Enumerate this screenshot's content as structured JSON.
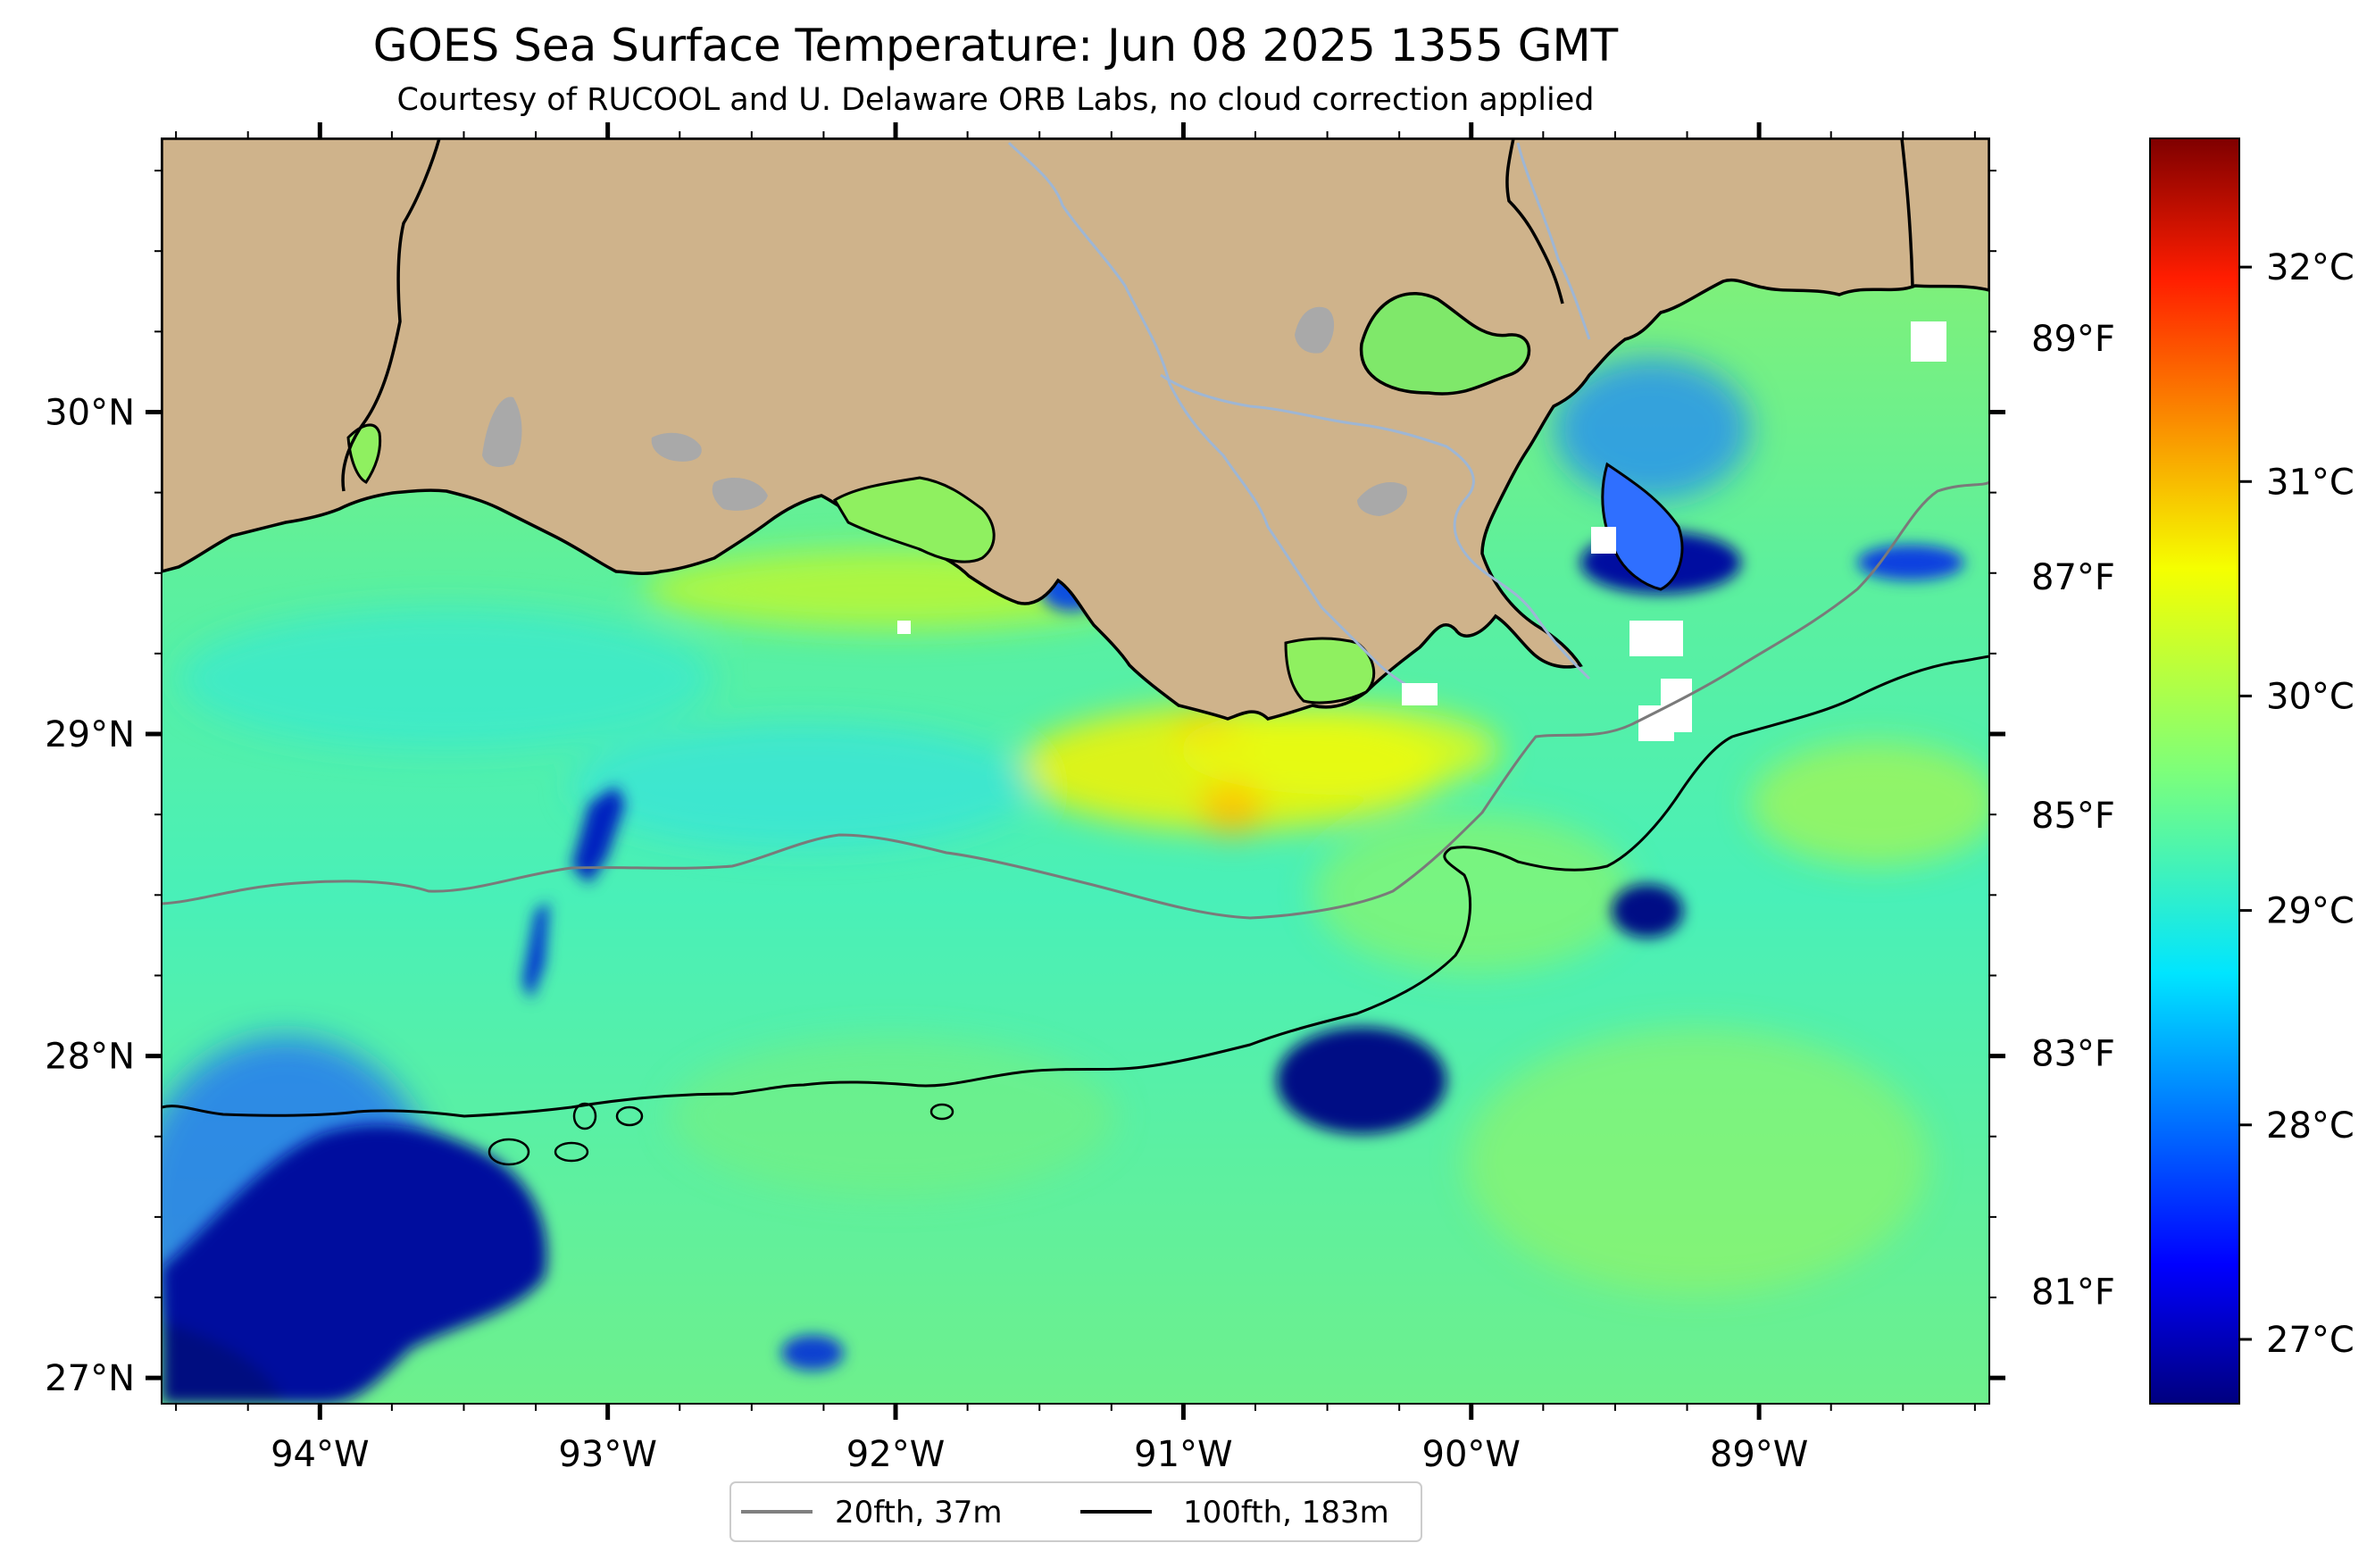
{
  "title": "GOES Sea Surface Temperature: Jun 08 2025 1355 GMT",
  "subtitle": "Courtesy of RUCOOL and U. Delaware ORB Labs, no cloud correction applied",
  "map": {
    "lon_range": [
      -94.55,
      -88.2
    ],
    "lat_range": [
      26.92,
      30.85
    ],
    "lon_ticks": [
      {
        "value": -94,
        "label": "94°W"
      },
      {
        "value": -93,
        "label": "93°W"
      },
      {
        "value": -92,
        "label": "92°W"
      },
      {
        "value": -91,
        "label": "91°W"
      },
      {
        "value": -90,
        "label": "90°W"
      },
      {
        "value": -89,
        "label": "89°W"
      }
    ],
    "lat_ticks": [
      {
        "value": 30,
        "label": "30°N"
      },
      {
        "value": 29,
        "label": "29°N"
      },
      {
        "value": 28,
        "label": "28°N"
      },
      {
        "value": 27,
        "label": "27°N"
      }
    ],
    "land_color": "#cfb38b",
    "lake_color": "#a9a9a9",
    "river_color": "#9eb6d4"
  },
  "colorbar": {
    "colormap": "jet",
    "range_c": [
      26.7,
      32.6
    ],
    "celsius_ticks": [
      {
        "value": 27,
        "label": "27°C"
      },
      {
        "value": 28,
        "label": "28°C"
      },
      {
        "value": 29,
        "label": "29°C"
      },
      {
        "value": 30,
        "label": "30°C"
      },
      {
        "value": 31,
        "label": "31°C"
      },
      {
        "value": 32,
        "label": "32°C"
      }
    ],
    "fahrenheit_ticks": [
      {
        "value": 81,
        "label": "81°F"
      },
      {
        "value": 83,
        "label": "83°F"
      },
      {
        "value": 85,
        "label": "85°F"
      },
      {
        "value": 87,
        "label": "87°F"
      },
      {
        "value": 89,
        "label": "89°F"
      }
    ]
  },
  "legend": {
    "items": [
      {
        "label": "20fth, 37m",
        "color": "#808080"
      },
      {
        "label": "100fth, 183m",
        "color": "#000000"
      }
    ]
  }
}
